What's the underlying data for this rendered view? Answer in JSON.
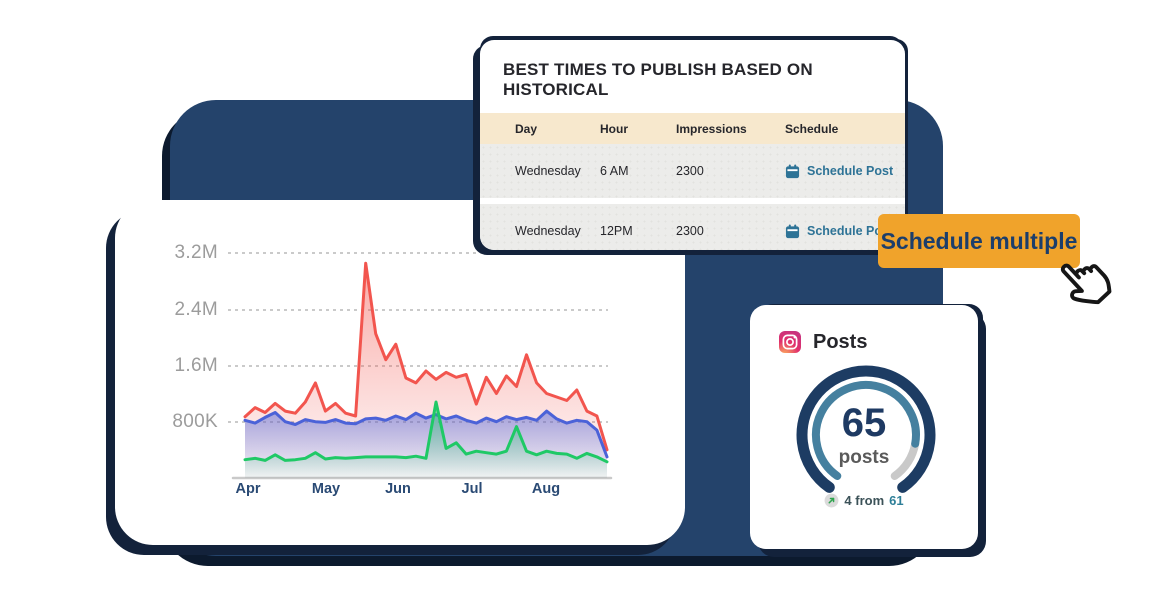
{
  "table_card": {
    "title": "BEST TIMES TO PUBLISH BASED ON HISTORICAL",
    "columns": [
      "Day",
      "Hour",
      "Impressions",
      "Schedule"
    ],
    "rows": [
      {
        "day": "Wednesday",
        "hour": "6 AM",
        "impressions": "2300",
        "action": "Schedule Post"
      },
      {
        "day": "Wednesday",
        "hour": "12PM",
        "impressions": "2300",
        "action": "Schedule Post"
      }
    ]
  },
  "cta_button": {
    "label": "Schedule multiple"
  },
  "posts_card": {
    "title": "Posts",
    "gauge": {
      "value": "65",
      "unit": "posts",
      "progress_fraction_est": 0.85
    },
    "stat": {
      "delta": "4",
      "connector": "from",
      "previous": "61"
    }
  },
  "chart_data": {
    "type": "area",
    "title": "",
    "xlabel": "",
    "ylabel": "",
    "unit": "values in thousands (K)",
    "x_axis_labels": [
      "Apr",
      "May",
      "Jun",
      "Jul",
      "Aug"
    ],
    "y_axis_labels": [
      "800K",
      "1.6M",
      "2.4M",
      "3.2M"
    ],
    "y_gridline_values_k": [
      800,
      1600,
      2400,
      3200
    ],
    "ylim_k": [
      0,
      3400
    ],
    "grid": "dashed horizontal",
    "legend": "none",
    "series": [
      {
        "name": "red-series",
        "color": "#F2554E",
        "values_k": [
          870,
          1000,
          930,
          1060,
          950,
          920,
          1080,
          1350,
          950,
          1060,
          920,
          880,
          3050,
          2050,
          1680,
          1900,
          1420,
          1350,
          1520,
          1400,
          1500,
          1430,
          1470,
          1050,
          1430,
          1200,
          1450,
          1300,
          1750,
          1350,
          1200,
          1150,
          1100,
          1250,
          950,
          880,
          400
        ]
      },
      {
        "name": "blue-series",
        "color": "#4B62D8",
        "values_k": [
          820,
          780,
          860,
          930,
          800,
          760,
          830,
          800,
          790,
          830,
          780,
          770,
          840,
          850,
          820,
          880,
          830,
          920,
          850,
          900,
          840,
          880,
          820,
          780,
          850,
          800,
          870,
          830,
          860,
          820,
          950,
          840,
          780,
          820,
          800,
          680,
          300
        ]
      },
      {
        "name": "green-series",
        "color": "#1FC966",
        "values_k": [
          260,
          280,
          250,
          330,
          250,
          260,
          280,
          360,
          270,
          290,
          280,
          290,
          300,
          300,
          300,
          300,
          290,
          310,
          280,
          1080,
          420,
          500,
          340,
          380,
          360,
          340,
          380,
          730,
          380,
          330,
          380,
          350,
          340,
          280,
          350,
          300,
          230
        ]
      }
    ]
  },
  "colors": {
    "navy_panel": "#24436B",
    "dark_outline": "#13223B",
    "orange_button": "#F0A32B",
    "button_text_navy": "#1C3E6B",
    "table_header_beige": "#F7E8CD",
    "table_row_gray": "#ECECEA",
    "link_teal": "#2E7396",
    "gauge_navy": "#1D3C63",
    "gauge_teal": "#45809F",
    "gauge_track_gray": "#C9C9C9",
    "tick_gray": "#9C9C9C",
    "month_label_navy": "#2A4A74",
    "instagram_pink": "#E1306C"
  }
}
